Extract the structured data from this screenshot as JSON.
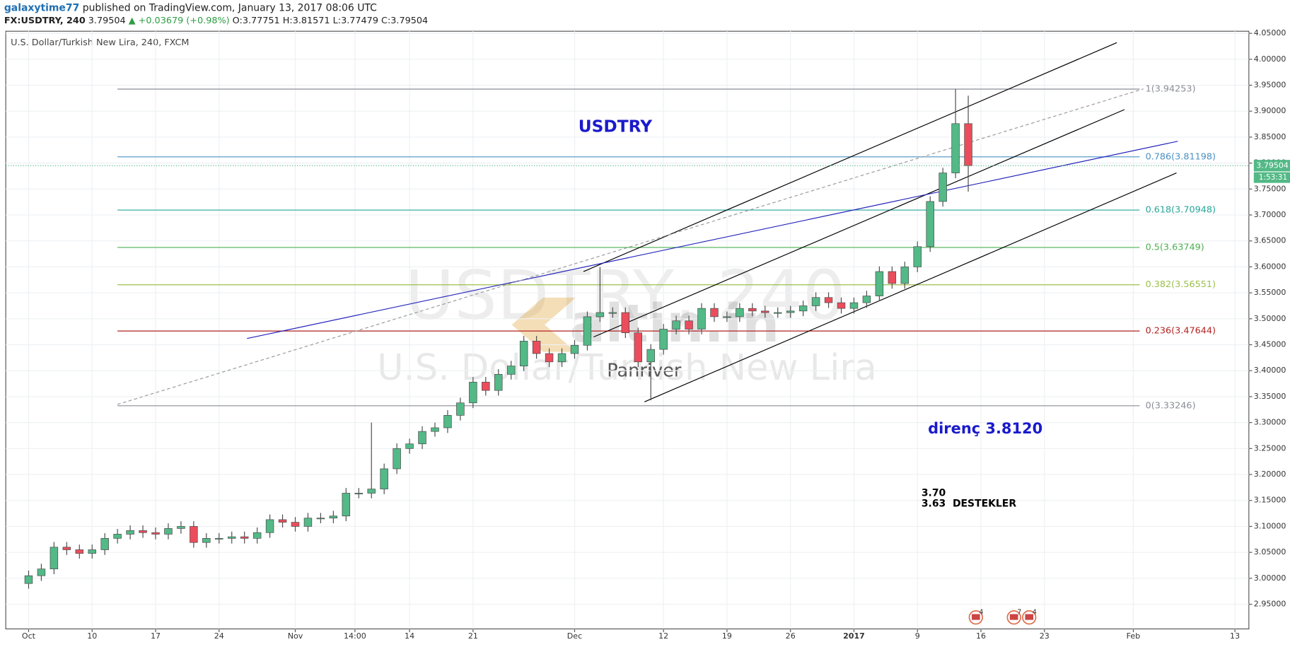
{
  "header": {
    "author": "galaxytime77",
    "published": "published on TradingView.com, January 13, 2017 08:06 UTC",
    "symbol": "FX:USDTRY, 240",
    "price": "3.79504",
    "change": "▲ +0.03679 (+0.98%)",
    "open": "O:3.77751",
    "high": "H:3.81571",
    "low": "L:3.77479",
    "close": "C:3.79504"
  },
  "chart_data": {
    "type": "candlestick",
    "title": "U.S. Dollar/Turkish New Lira, 240, FXCM",
    "up_color": "#53b987",
    "down_color": "#eb4d5c",
    "grid": true,
    "xlim": [
      -1.8,
      96.1
    ],
    "ylim": [
      2.9025,
      4.054
    ],
    "xticks": [
      {
        "value": 0,
        "label": "Oct"
      },
      {
        "value": 5,
        "label": "10"
      },
      {
        "value": 10,
        "label": "17"
      },
      {
        "value": 15,
        "label": "24"
      },
      {
        "value": 21,
        "label": "Nov"
      },
      {
        "value": 25.7,
        "label": "14:00"
      },
      {
        "value": 30,
        "label": "14"
      },
      {
        "value": 35,
        "label": "21"
      },
      {
        "value": 43,
        "label": "Dec"
      },
      {
        "value": 50,
        "label": "12"
      },
      {
        "value": 55,
        "label": "19"
      },
      {
        "value": 60,
        "label": "26"
      },
      {
        "value": 65,
        "label": "2017"
      },
      {
        "value": 70,
        "label": "9"
      },
      {
        "value": 75,
        "label": "16"
      },
      {
        "value": 80,
        "label": "23"
      },
      {
        "value": 87,
        "label": "Feb"
      },
      {
        "value": 95,
        "label": "13"
      }
    ],
    "yticks": [
      {
        "value": 2.95,
        "label": "2.95000"
      },
      {
        "value": 3.0,
        "label": "3.00000"
      },
      {
        "value": 3.05,
        "label": "3.05000"
      },
      {
        "value": 3.1,
        "label": "3.10000"
      },
      {
        "value": 3.15,
        "label": "3.15000"
      },
      {
        "value": 3.2,
        "label": "3.20000"
      },
      {
        "value": 3.25,
        "label": "3.25000"
      },
      {
        "value": 3.3,
        "label": "3.30000"
      },
      {
        "value": 3.35,
        "label": "3.35000"
      },
      {
        "value": 3.4,
        "label": "3.40000"
      },
      {
        "value": 3.45,
        "label": "3.45000"
      },
      {
        "value": 3.5,
        "label": "3.50000"
      },
      {
        "value": 3.55,
        "label": "3.55000"
      },
      {
        "value": 3.6,
        "label": "3.60000"
      },
      {
        "value": 3.65,
        "label": "3.65000"
      },
      {
        "value": 3.7,
        "label": "3.70000"
      },
      {
        "value": 3.75,
        "label": "3.75000"
      },
      {
        "value": 3.8,
        "label": "3.80000"
      },
      {
        "value": 3.85,
        "label": "3.85000"
      },
      {
        "value": 3.9,
        "label": "3.90000"
      },
      {
        "value": 3.95,
        "label": "3.95000"
      },
      {
        "value": 4.0,
        "label": "4.00000"
      },
      {
        "value": 4.05,
        "label": "4.05000"
      }
    ],
    "x": [
      0,
      1,
      2,
      3,
      4,
      5,
      6,
      7,
      8,
      9,
      10,
      11,
      12,
      13,
      14,
      15,
      16,
      17,
      18,
      19,
      20,
      21,
      22,
      23,
      24,
      25,
      26,
      27,
      28,
      29,
      30,
      31,
      32,
      33,
      34,
      35,
      36,
      37,
      38,
      39,
      40,
      41,
      42,
      43,
      44,
      45,
      46,
      47,
      48,
      49,
      50,
      51,
      52,
      53,
      54,
      55,
      56,
      57,
      58,
      59,
      60,
      61,
      62,
      63,
      64,
      65,
      66,
      67,
      68,
      69,
      70,
      71,
      72,
      73,
      74
    ],
    "open": [
      2.99,
      3.005,
      3.018,
      3.06,
      3.055,
      3.048,
      3.055,
      3.077,
      3.085,
      3.092,
      3.088,
      3.085,
      3.096,
      3.1,
      3.069,
      3.077,
      3.077,
      3.08,
      3.077,
      3.088,
      3.113,
      3.108,
      3.1,
      3.116,
      3.116,
      3.12,
      3.164,
      3.164,
      3.172,
      3.211,
      3.25,
      3.259,
      3.283,
      3.29,
      3.314,
      3.338,
      3.378,
      3.362,
      3.393,
      3.409,
      3.457,
      3.433,
      3.417,
      3.433,
      3.449,
      3.504,
      3.512,
      3.512,
      3.473,
      3.417,
      3.441,
      3.48,
      3.496,
      3.48,
      3.52,
      3.504,
      3.504,
      3.52,
      3.515,
      3.512,
      3.512,
      3.515,
      3.525,
      3.541,
      3.531,
      3.52,
      3.531,
      3.544,
      3.591,
      3.568,
      3.6,
      3.639,
      3.726,
      3.781,
      3.876
    ],
    "high": [
      3.015,
      3.028,
      3.07,
      3.07,
      3.065,
      3.065,
      3.087,
      3.095,
      3.102,
      3.102,
      3.098,
      3.106,
      3.11,
      3.11,
      3.087,
      3.087,
      3.09,
      3.09,
      3.098,
      3.123,
      3.123,
      3.118,
      3.126,
      3.126,
      3.13,
      3.174,
      3.174,
      3.3,
      3.221,
      3.26,
      3.269,
      3.293,
      3.3,
      3.324,
      3.348,
      3.388,
      3.388,
      3.403,
      3.419,
      3.467,
      3.467,
      3.443,
      3.443,
      3.459,
      3.514,
      3.6,
      3.522,
      3.522,
      3.483,
      3.451,
      3.49,
      3.506,
      3.506,
      3.53,
      3.53,
      3.514,
      3.53,
      3.53,
      3.525,
      3.522,
      3.525,
      3.535,
      3.551,
      3.551,
      3.541,
      3.541,
      3.554,
      3.601,
      3.601,
      3.61,
      3.649,
      3.736,
      3.791,
      3.94253,
      3.93
    ],
    "low": [
      2.98,
      2.995,
      3.008,
      3.045,
      3.038,
      3.038,
      3.045,
      3.067,
      3.075,
      3.078,
      3.075,
      3.075,
      3.086,
      3.059,
      3.059,
      3.067,
      3.067,
      3.067,
      3.067,
      3.078,
      3.098,
      3.09,
      3.09,
      3.106,
      3.106,
      3.11,
      3.154,
      3.154,
      3.162,
      3.201,
      3.24,
      3.249,
      3.273,
      3.28,
      3.304,
      3.328,
      3.352,
      3.352,
      3.383,
      3.399,
      3.423,
      3.407,
      3.407,
      3.423,
      3.439,
      3.494,
      3.502,
      3.463,
      3.407,
      3.343,
      3.431,
      3.47,
      3.47,
      3.47,
      3.494,
      3.494,
      3.494,
      3.505,
      3.502,
      3.502,
      3.502,
      3.505,
      3.515,
      3.521,
      3.51,
      3.51,
      3.521,
      3.534,
      3.558,
      3.558,
      3.59,
      3.629,
      3.716,
      3.771,
      3.745
    ],
    "close": [
      3.005,
      3.018,
      3.06,
      3.055,
      3.048,
      3.055,
      3.077,
      3.085,
      3.092,
      3.088,
      3.085,
      3.096,
      3.1,
      3.069,
      3.077,
      3.077,
      3.08,
      3.077,
      3.088,
      3.113,
      3.108,
      3.1,
      3.116,
      3.116,
      3.12,
      3.164,
      3.164,
      3.172,
      3.211,
      3.25,
      3.259,
      3.283,
      3.29,
      3.314,
      3.338,
      3.378,
      3.362,
      3.393,
      3.409,
      3.457,
      3.433,
      3.417,
      3.433,
      3.449,
      3.504,
      3.512,
      3.512,
      3.473,
      3.417,
      3.441,
      3.48,
      3.496,
      3.48,
      3.52,
      3.504,
      3.504,
      3.52,
      3.515,
      3.512,
      3.512,
      3.515,
      3.525,
      3.541,
      3.531,
      3.52,
      3.531,
      3.544,
      3.591,
      3.568,
      3.6,
      3.639,
      3.726,
      3.781,
      3.876,
      3.79504
    ],
    "countdown": "1:53:31",
    "fib_x": [
      7.0,
      87.5
    ],
    "fib": [
      {
        "label": "1(3.94253)",
        "value": 3.94253,
        "color": "#8a8d96"
      },
      {
        "label": "0.786(3.81198)",
        "value": 3.81198,
        "color": "#4a90c2"
      },
      {
        "label": "0.618(3.70948)",
        "value": 3.70948,
        "color": "#26a69a"
      },
      {
        "label": "0.5(3.63749)",
        "value": 3.63749,
        "color": "#4caf50"
      },
      {
        "label": "0.382(3.56551)",
        "value": 3.56551,
        "color": "#9bbf4a"
      },
      {
        "label": "0.236(3.47644)",
        "value": 3.47644,
        "color": "#b22222"
      },
      {
        "label": "0(3.33246)",
        "value": 3.33246,
        "color": "#8a8d96"
      }
    ],
    "lines": [
      {
        "color": "#000000",
        "x": [
          43.7,
          85.7
        ],
        "y": [
          3.591,
          4.032
        ]
      },
      {
        "color": "#000000",
        "x": [
          44.5,
          86.3
        ],
        "y": [
          3.465,
          3.903
        ]
      },
      {
        "color": "#000000",
        "x": [
          48.5,
          90.4
        ],
        "y": [
          3.34,
          3.781
        ]
      },
      {
        "color": "#2222bb",
        "x": [
          17.2,
          90.5
        ],
        "y": [
          3.462,
          3.842
        ]
      },
      {
        "color": "#999999",
        "dashed": true,
        "x": [
          7.0,
          87.8
        ],
        "y": [
          3.335,
          3.943
        ]
      }
    ],
    "events": [
      {
        "x": 74.6,
        "label": "4"
      },
      {
        "x": 77.6,
        "label": "7"
      },
      {
        "x": 78.8,
        "label": "4"
      }
    ],
    "annotations": [
      "USDTRY",
      "direnç 3.8120",
      "3.70",
      "3.63  DESTEKLER"
    ],
    "watermark": [
      "USDTRY, 240",
      "U.S. Dollar/Turkish New Lira",
      "altin.in",
      "Panriver"
    ]
  }
}
